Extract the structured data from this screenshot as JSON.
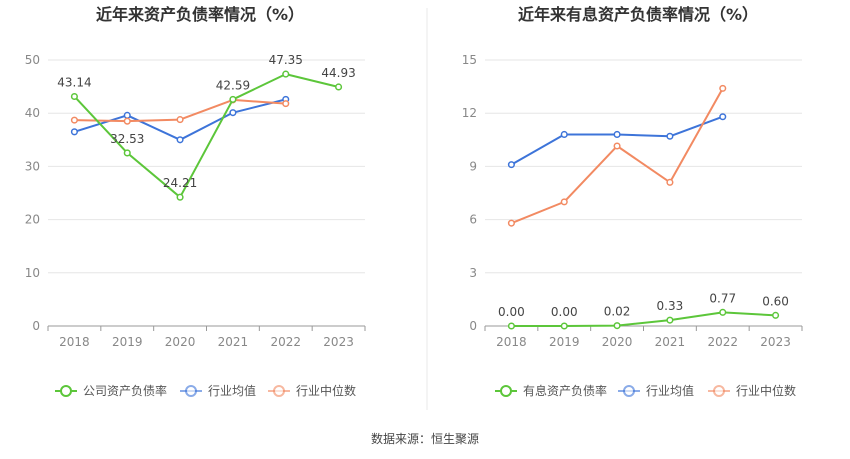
{
  "colors": {
    "company": "#5cc63a",
    "industry_avg": "#3d74d9",
    "industry_median": "#f28a62",
    "grid": "#e6e6e6",
    "axis": "#999999",
    "divider": "#e8e8e8"
  },
  "footer": {
    "source": "数据来源：恒生聚源"
  },
  "chart_data": [
    {
      "type": "line",
      "title": "近年来资产负债率情况（%）",
      "xlabel": "",
      "ylabel": "",
      "categories": [
        "2018",
        "2019",
        "2020",
        "2021",
        "2022",
        "2023"
      ],
      "ylim": [
        0,
        50
      ],
      "yticks": [
        0,
        10,
        20,
        30,
        40,
        50
      ],
      "grid": true,
      "legend_position": "bottom",
      "series": [
        {
          "name": "公司资产负债率",
          "color_key": "company",
          "labeled": true,
          "labels": [
            "43.14",
            "32.53",
            "24.21",
            "42.59",
            "47.35",
            "44.93"
          ],
          "values": [
            43.14,
            32.53,
            24.21,
            42.59,
            47.35,
            44.93
          ]
        },
        {
          "name": "行业均值",
          "color_key": "industry_avg",
          "labeled": false,
          "values": [
            36.5,
            39.6,
            35.0,
            40.1,
            42.6,
            null
          ]
        },
        {
          "name": "行业中位数",
          "color_key": "industry_median",
          "labeled": false,
          "values": [
            38.7,
            38.5,
            38.8,
            42.5,
            41.8,
            null
          ]
        }
      ]
    },
    {
      "type": "line",
      "title": "近年来有息资产负债率情况（%）",
      "xlabel": "",
      "ylabel": "",
      "categories": [
        "2018",
        "2019",
        "2020",
        "2021",
        "2022",
        "2023"
      ],
      "ylim": [
        0,
        15
      ],
      "yticks": [
        0,
        3,
        6,
        9,
        12,
        15
      ],
      "grid": true,
      "legend_position": "bottom",
      "series": [
        {
          "name": "有息资产负债率",
          "color_key": "company",
          "labeled": true,
          "labels": [
            "0.00",
            "0.00",
            "0.02",
            "0.33",
            "0.77",
            "0.60"
          ],
          "values": [
            0.0,
            0.0,
            0.02,
            0.33,
            0.77,
            0.6
          ]
        },
        {
          "name": "行业均值",
          "color_key": "industry_avg",
          "labeled": false,
          "values": [
            9.1,
            10.8,
            10.8,
            10.7,
            11.8,
            null
          ]
        },
        {
          "name": "行业中位数",
          "color_key": "industry_median",
          "labeled": false,
          "values": [
            5.8,
            7.0,
            10.15,
            8.1,
            13.4,
            null
          ]
        }
      ]
    }
  ]
}
